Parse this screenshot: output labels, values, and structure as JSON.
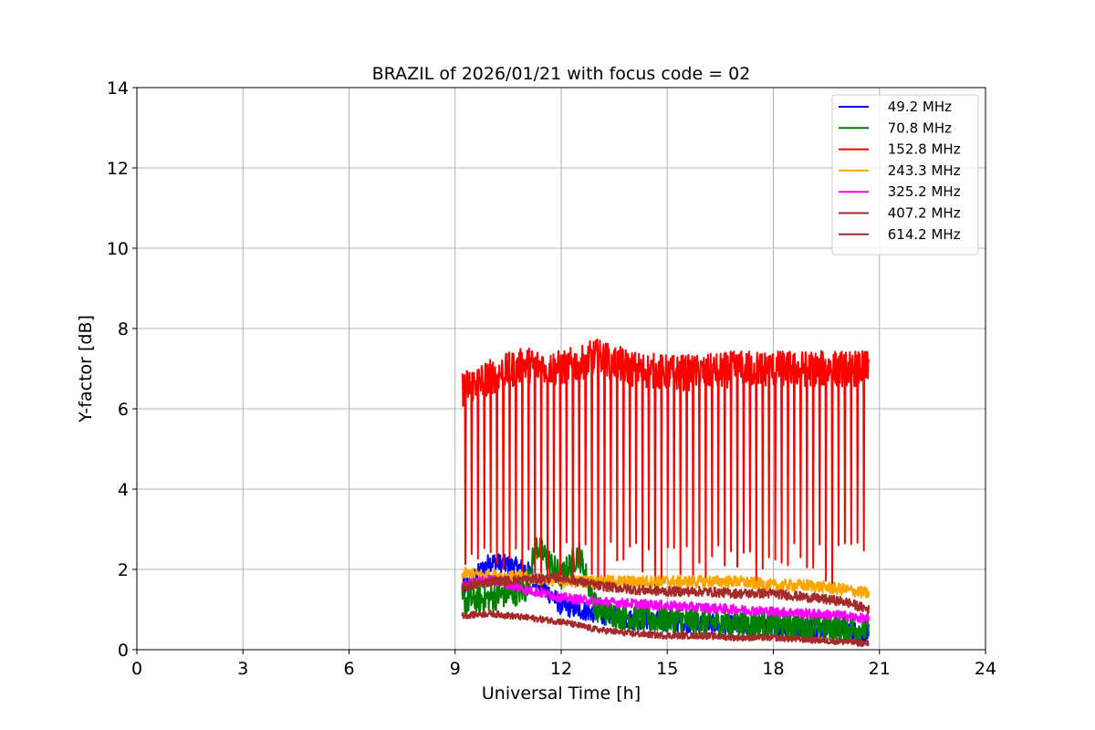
{
  "chart_data": {
    "type": "line",
    "title": "BRAZIL of 2026/01/21 with focus code = 02",
    "xlabel": "Universal Time [h]",
    "ylabel": "Y-factor [dB]",
    "xlim": [
      0,
      24
    ],
    "ylim": [
      0,
      14
    ],
    "xticks": [
      "0",
      "3",
      "6",
      "9",
      "12",
      "15",
      "18",
      "21",
      "24"
    ],
    "yticks": [
      "0",
      "2",
      "4",
      "6",
      "8",
      "10",
      "12",
      "14"
    ],
    "grid": true,
    "legend_position": "top-right",
    "series": [
      {
        "name": " 49.2 MHz",
        "color": "#0000ff",
        "x": [
          9.2,
          10,
          10.5,
          11,
          12,
          13,
          14,
          15,
          16,
          17,
          18,
          19,
          20,
          20.7
        ],
        "y": [
          1.5,
          2.2,
          2.1,
          2.0,
          1.1,
          0.9,
          0.75,
          0.7,
          0.65,
          0.6,
          0.6,
          0.55,
          0.5,
          0.4
        ],
        "noise": 0.25
      },
      {
        "name": " 70.8 MHz",
        "color": "#008000",
        "x": [
          9.2,
          10,
          11,
          11.3,
          12,
          12.5,
          13,
          14,
          15,
          16,
          17,
          18,
          19,
          20,
          20.7
        ],
        "y": [
          1.2,
          1.3,
          1.5,
          2.6,
          1.8,
          2.4,
          1.0,
          0.8,
          0.75,
          0.7,
          0.65,
          0.6,
          0.6,
          0.55,
          0.5
        ],
        "noise": 0.35
      },
      {
        "name": " 152.8 MHz",
        "color": "#ff0000",
        "x": [
          9.2,
          10,
          11,
          12,
          13,
          14,
          15,
          16,
          17,
          18,
          19,
          20,
          20.7
        ],
        "y": [
          6.5,
          6.8,
          7.1,
          7.0,
          7.3,
          7.0,
          6.9,
          6.9,
          7.0,
          7.0,
          7.0,
          7.0,
          7.0
        ],
        "noise": 0.45
      },
      {
        "name": " 243.3 MHz",
        "color": "#ffa500",
        "x": [
          9.2,
          10,
          11,
          12,
          13,
          14,
          15,
          16,
          17,
          18,
          19,
          20,
          20.7
        ],
        "y": [
          1.9,
          1.85,
          1.8,
          1.7,
          1.7,
          1.7,
          1.7,
          1.7,
          1.7,
          1.6,
          1.6,
          1.5,
          1.4
        ],
        "noise": 0.15
      },
      {
        "name": " 325.2 MHz",
        "color": "#ff00ff",
        "x": [
          9.2,
          10,
          11,
          12,
          13,
          14,
          15,
          16,
          17,
          18,
          19,
          20,
          20.7
        ],
        "y": [
          1.6,
          1.75,
          1.5,
          1.3,
          1.2,
          1.15,
          1.1,
          1.05,
          1.0,
          0.95,
          0.9,
          0.85,
          0.75
        ],
        "noise": 0.12
      },
      {
        "name": " 407.2 MHz",
        "color": "#a52a2a",
        "x": [
          9.2,
          10,
          11,
          12,
          13,
          14,
          15,
          16,
          17,
          18,
          19,
          20,
          20.7
        ],
        "y": [
          1.55,
          1.7,
          1.75,
          1.8,
          1.6,
          1.5,
          1.45,
          1.45,
          1.4,
          1.4,
          1.3,
          1.2,
          1.0
        ],
        "noise": 0.12
      },
      {
        "name": " 614.2 MHz",
        "color": "#a52a2a",
        "x": [
          9.2,
          10,
          11,
          12,
          13,
          14,
          15,
          16,
          17,
          18,
          19,
          20,
          20.7
        ],
        "y": [
          0.85,
          0.9,
          0.8,
          0.7,
          0.5,
          0.4,
          0.35,
          0.35,
          0.3,
          0.3,
          0.25,
          0.2,
          0.15
        ],
        "noise": 0.08
      }
    ]
  }
}
